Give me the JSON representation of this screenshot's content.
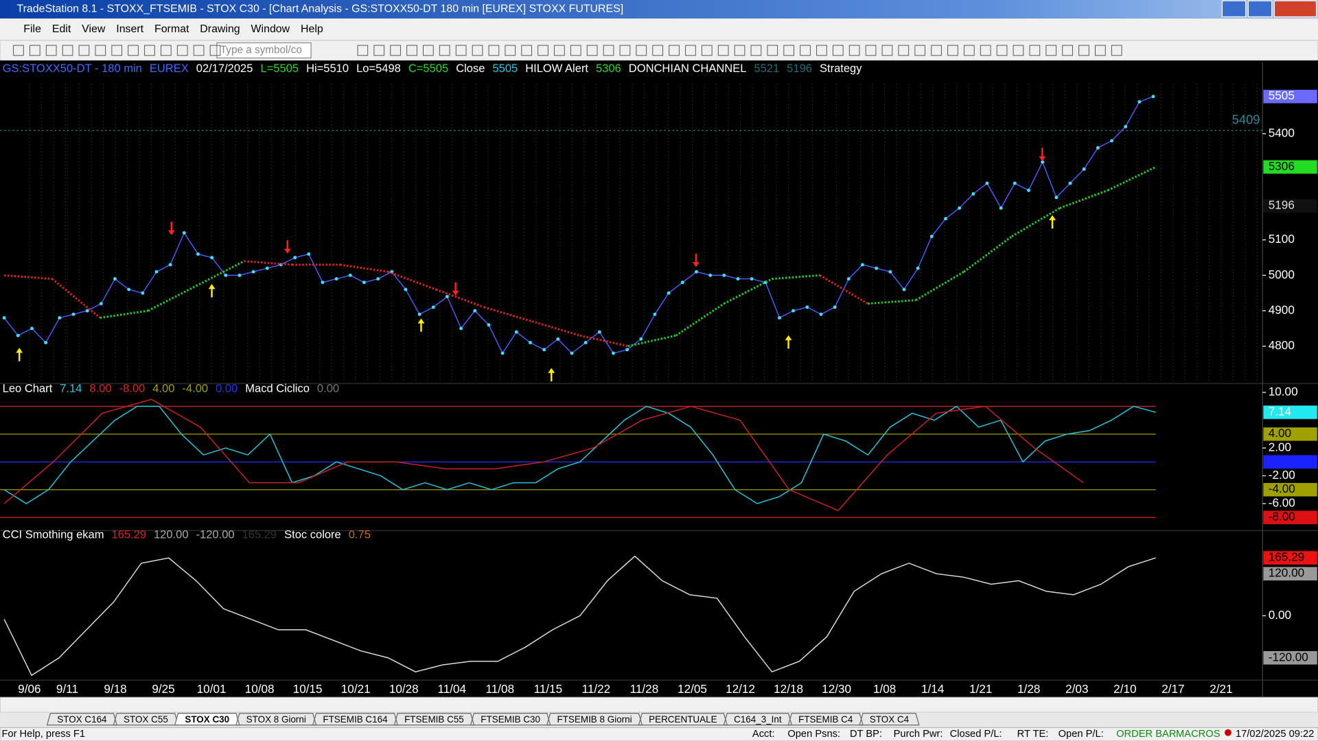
{
  "window": {
    "title": "TradeStation 8.1 - STOXX_FTSEMIB - STOX  C30 - [Chart Analysis - GS:STOXX50-DT  180 min  [EUREX] STOXX FUTURES]",
    "menu": [
      "File",
      "Edit",
      "View",
      "Insert",
      "Format",
      "Drawing",
      "Window",
      "Help"
    ],
    "symbol_input": "Type a symbol/co",
    "tabs": [
      "STOX C164",
      "STOX C55",
      "STOX C30",
      "STOX 8 Giorni",
      "FTSEMIB C164",
      "FTSEMIB C55",
      "FTSEMIB C30",
      "FTSEMIB 8 Giorni",
      "PERCENTUALE",
      "C164_3_Int",
      "FTSEMIB C4",
      "STOX C4"
    ],
    "active_tab": "STOX C30",
    "status": [
      "For Help, press F1",
      "Acct:",
      "Open Psns:",
      "DT BP:",
      "Purch Pwr:",
      "Closed P/L:",
      "RT TE:",
      "Open P/L:",
      "ORDER BAR",
      "MACROS",
      "17/02/2025 09:22"
    ]
  },
  "chart": {
    "dates": [
      "9/06",
      "9/11",
      "9/18",
      "9/25",
      "10/01",
      "10/08",
      "10/15",
      "10/21",
      "10/28",
      "11/04",
      "11/08",
      "11/15",
      "11/22",
      "11/28",
      "12/05",
      "12/12",
      "12/18",
      "12/30",
      "1/08",
      "1/14",
      "1/21",
      "1/28",
      "2/03",
      "2/10",
      "2/17",
      "2/21"
    ],
    "price": {
      "header": [
        {
          "text": "GS:STOXX50-DT - 180 min",
          "color": "#3f6bff"
        },
        {
          "text": "EUREX",
          "color": "#3f6bff"
        },
        {
          "text": "02/17/2025",
          "color": "#ffffff"
        },
        {
          "text": "L=5505",
          "color": "#22dd22"
        },
        {
          "text": "Hi=5510",
          "color": "#ffffff"
        },
        {
          "text": "Lo=5498",
          "color": "#ffffff"
        },
        {
          "text": "C=5505",
          "color": "#22dd22"
        },
        {
          "text": "Close",
          "color": "#ffffff"
        },
        {
          "text": "5505",
          "color": "#22c8e0"
        },
        {
          "text": "HILOW Alert",
          "color": "#ffffff"
        },
        {
          "text": "5306",
          "color": "#22dd22"
        },
        {
          "text": "DONCHIAN CHANNEL",
          "color": "#ffffff"
        },
        {
          "text": "5521",
          "color": "#1b6f7a"
        },
        {
          "text": "5196",
          "color": "#1b6f7a"
        },
        {
          "text": "Strategy",
          "color": "#ffffff"
        }
      ],
      "ylim": [
        4698,
        5602
      ],
      "yticks": [
        4800,
        4900,
        5000,
        5100,
        5400
      ],
      "flags": [
        {
          "value": 5505,
          "color": "#6a6aff",
          "text_color": "#ffffff"
        },
        {
          "value": 5306,
          "color": "#22dd22",
          "text_color": "#000000"
        },
        {
          "value": 5196,
          "color": "#101010",
          "text_color": "#dddddd"
        }
      ],
      "level": 5409,
      "level_color": "#2a8a96",
      "close": [
        4880,
        4830,
        4850,
        4810,
        4880,
        4890,
        4900,
        4920,
        4990,
        4960,
        4950,
        5010,
        5030,
        5120,
        5060,
        5050,
        5000,
        5000,
        5010,
        5020,
        5030,
        5050,
        5060,
        4980,
        4990,
        5000,
        4980,
        4990,
        5010,
        4960,
        4890,
        4910,
        4940,
        4850,
        4900,
        4860,
        4780,
        4840,
        4810,
        4790,
        4820,
        4780,
        4810,
        4840,
        4780,
        4790,
        4820,
        4890,
        4950,
        4980,
        5010,
        5000,
        5000,
        4990,
        4990,
        4980,
        4880,
        4900,
        4910,
        4890,
        4910,
        4990,
        5030,
        5020,
        5010,
        4960,
        5020,
        5110,
        5160,
        5190,
        5230,
        5260,
        5190,
        5260,
        5240,
        5320,
        5220,
        5260,
        5300,
        5360,
        5380,
        5420,
        5490,
        5505
      ],
      "close_color": "#4a5cff",
      "dot_color": "#3fe0ff",
      "ma": [
        5000,
        4990,
        4880,
        4900,
        4970,
        5040,
        5030,
        5030,
        5010,
        4960,
        4910,
        4870,
        4830,
        4800,
        4830,
        4920,
        4990,
        5000,
        4920,
        4930,
        5010,
        5110,
        5190,
        5240,
        5306
      ],
      "up_color": "#22cc22",
      "down_color": "#dd2222"
    },
    "macd": {
      "header": [
        {
          "text": "Leo Chart",
          "color": "#ffffff"
        },
        {
          "text": "7.14",
          "color": "#22c8e0"
        },
        {
          "text": "8.00",
          "color": "#dd2222"
        },
        {
          "text": "-8.00",
          "color": "#dd2222"
        },
        {
          "text": "4.00",
          "color": "#a0a000"
        },
        {
          "text": "-4.00",
          "color": "#a0a000"
        },
        {
          "text": "0.00",
          "color": "#2233ff"
        },
        {
          "text": "Macd Ciclico",
          "color": "#ffffff"
        },
        {
          "text": "0.00",
          "color": "#777777"
        }
      ],
      "ylim": [
        -9.7,
        11.1
      ],
      "yticks": [
        {
          "value": 10,
          "label": "10.00"
        },
        {
          "value": 2,
          "label": "2.00"
        },
        {
          "value": -2,
          "label": "-2.00"
        },
        {
          "value": -6,
          "label": "-6.00"
        }
      ],
      "flags": [
        {
          "value": 7.14,
          "color": "#22e8f0",
          "text_color": "#ffffff"
        },
        {
          "value": 4,
          "label": "4.00",
          "color": "#a0a000",
          "text_color": "#000000"
        },
        {
          "value": 0,
          "label": "0.00",
          "color": "#1a22ff",
          "text_color": "#1a22ff"
        },
        {
          "value": -4,
          "label": "-4.00",
          "color": "#a0a000",
          "text_color": "#000000"
        },
        {
          "value": -8,
          "label": "-8.00",
          "color": "#dd1111",
          "text_color": "#000000"
        }
      ],
      "levels": [
        {
          "value": 8,
          "color": "#dd2222"
        },
        {
          "value": 4,
          "color": "#a0a000"
        },
        {
          "value": 0,
          "color": "#2233ff"
        },
        {
          "value": -4,
          "color": "#a0a000"
        },
        {
          "value": -8,
          "color": "#dd2222"
        }
      ],
      "series": [
        {
          "name": "Leo Chart",
          "color": "#22c8e0",
          "values": [
            -4,
            -6,
            -4,
            0,
            3,
            6,
            8,
            8,
            4,
            1,
            2,
            1,
            4,
            -3,
            -2,
            0,
            -1,
            -2,
            -4,
            -3,
            -4,
            -3,
            -4,
            -3,
            -3,
            -1,
            0,
            3,
            6,
            8,
            7,
            5,
            1,
            -4,
            -6,
            -5,
            -3,
            4,
            3,
            1,
            5,
            7,
            6,
            8,
            5,
            6,
            0,
            3,
            4,
            4.5,
            6,
            8,
            7.14
          ]
        },
        {
          "name": "Macd Ciclico",
          "color": "#cc2222",
          "values": [
            -6,
            0,
            7,
            9,
            5,
            -3,
            -3,
            0,
            0,
            -1,
            -1,
            0,
            2,
            6,
            8,
            6,
            -4,
            -7,
            1,
            7,
            8,
            2,
            -3
          ]
        }
      ]
    },
    "cci": {
      "header": [
        {
          "text": "CCI Smothing ekam",
          "color": "#ffffff"
        },
        {
          "text": "165.29",
          "color": "#dd2222"
        },
        {
          "text": "120.00",
          "color": "#aaaaaa"
        },
        {
          "text": "-120.00",
          "color": "#aaaaaa"
        },
        {
          "text": "165.29",
          "color": "#333333"
        },
        {
          "text": "Stoc colore",
          "color": "#ffffff"
        },
        {
          "text": "0.75",
          "color": "#d2691e"
        }
      ],
      "ylim": [
        -180,
        242
      ],
      "yticks": [
        {
          "value": 0,
          "label": "0.00"
        }
      ],
      "flags": [
        {
          "value": 165.29,
          "color": "#ee1111",
          "text_color": "#000000"
        },
        {
          "value": 120,
          "label": "120.00",
          "color": "#999999",
          "text_color": "#000000"
        },
        {
          "value": -120,
          "label": "-120.00",
          "color": "#999999",
          "text_color": "#000000"
        }
      ],
      "series": [
        {
          "name": "CCI Smothing ekam",
          "color": "#dddddd",
          "values": [
            -10,
            -170,
            -120,
            -40,
            40,
            150,
            165,
            100,
            20,
            -10,
            -40,
            -40,
            -70,
            -100,
            -120,
            -160,
            -140,
            -130,
            -130,
            -90,
            -40,
            0,
            100,
            170,
            100,
            60,
            50,
            -60,
            -160,
            -130,
            -60,
            70,
            120,
            150,
            120,
            110,
            90,
            100,
            70,
            60,
            90,
            140,
            165.29
          ]
        }
      ]
    }
  }
}
